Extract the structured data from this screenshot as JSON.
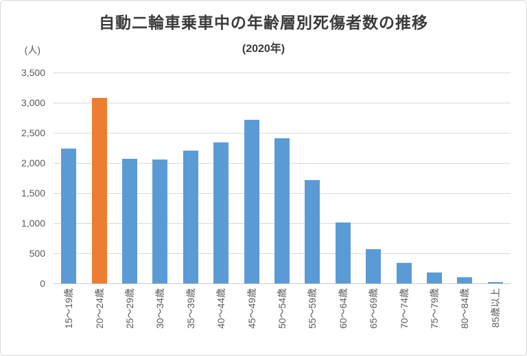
{
  "chart_data": {
    "type": "bar",
    "title": "自動二輪車乗車中の年齢層別死傷者数の推移",
    "subtitle": "(2020年)",
    "unit_label": "(人)",
    "categories": [
      "15〜19歳",
      "20〜24歳",
      "25〜29歳",
      "30〜34歳",
      "35〜39歳",
      "40〜44歳",
      "45〜49歳",
      "50〜54歳",
      "55〜59歳",
      "60〜64歳",
      "65〜69歳",
      "70〜74歳",
      "75〜79歳",
      "80〜84歳",
      "85歳以上"
    ],
    "values": [
      2240,
      3080,
      2070,
      2060,
      2200,
      2340,
      2720,
      2410,
      1720,
      1010,
      570,
      340,
      180,
      100,
      25
    ],
    "highlight_index": 1,
    "ylim": [
      0,
      3500
    ],
    "ytick_values": [
      3500,
      3000,
      2500,
      2000,
      1500,
      1000,
      500,
      0
    ],
    "ytick_labels": [
      "3,500",
      "3,000",
      "2,500",
      "2,000",
      "1,500",
      "1,000",
      "500",
      "0"
    ],
    "grid": true,
    "legend_position": "none",
    "colors": {
      "bar": "#5B9BD5",
      "highlight": "#ED7D31",
      "grid": "#D9D9D9",
      "axis": "#C9C9C9",
      "tick_text": "#595959",
      "title_text": "#3A3A3A"
    }
  }
}
